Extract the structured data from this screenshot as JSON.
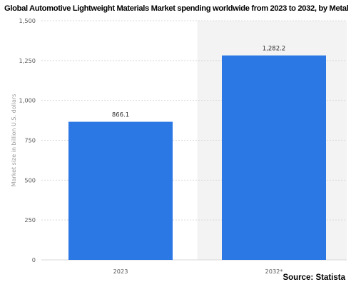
{
  "chart_data": {
    "type": "bar",
    "title": "Global Automotive Lightweight Materials Market spending worldwide from 2023 to 2032, by Metal",
    "xlabel": "",
    "ylabel": "Market size in billion U.S. dollars",
    "categories": [
      "2023",
      "2032*"
    ],
    "values": [
      866.1,
      1282.2
    ],
    "value_labels": [
      "866.1",
      "1,282.2"
    ],
    "ylim": [
      0,
      1500
    ],
    "yticks": [
      0,
      250,
      500,
      750,
      1000,
      1250,
      1500
    ],
    "ytick_labels": [
      "0",
      "250",
      "500",
      "750",
      "1,000",
      "1,250",
      "1,500"
    ],
    "grid": true,
    "legend": "none",
    "forecast_category": "2032*",
    "source": "Source: Statista",
    "colors": {
      "bar": "#2b78e4",
      "grid": "#d9d9d9",
      "forecast_shade": "#f3f3f3",
      "tick_text": "#5a5a5a",
      "axis_title": "#9a9a9a",
      "value_label": "#333333"
    }
  }
}
